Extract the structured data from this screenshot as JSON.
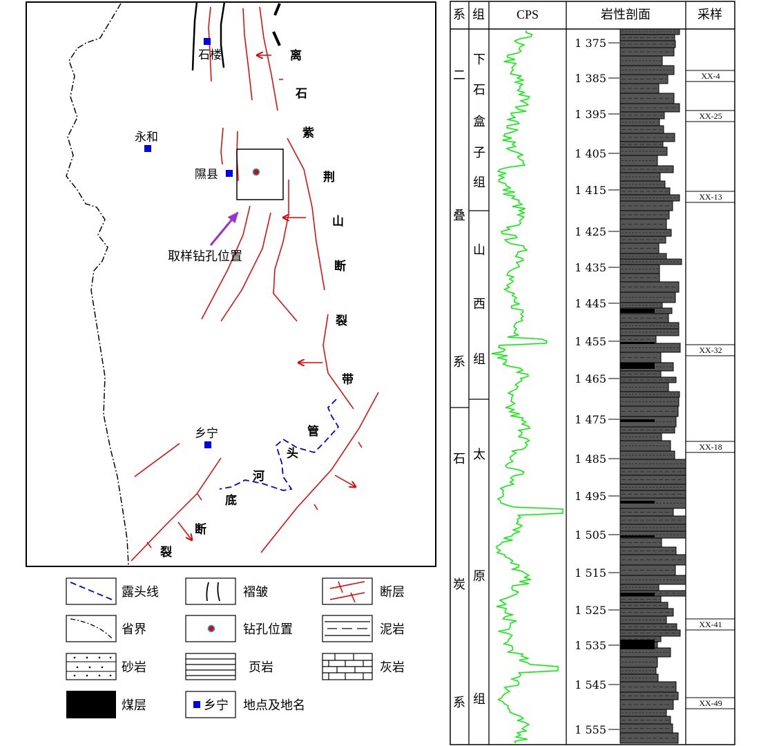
{
  "map": {
    "towns": [
      {
        "label": "石楼"
      },
      {
        "label": "永和"
      },
      {
        "label": "隰县"
      },
      {
        "label": "乡宁"
      }
    ],
    "arrow_label": "取样钻孔位置",
    "fault_zone_chars": [
      "离",
      "石",
      "紫",
      "荆",
      "山",
      "断",
      "裂",
      "带"
    ],
    "river_chars": [
      "管",
      "头",
      "河",
      "底",
      "断",
      "裂"
    ]
  },
  "legend": [
    {
      "id": "outcrop",
      "label": "露头线"
    },
    {
      "id": "fold",
      "label": "褶皱"
    },
    {
      "id": "fault",
      "label": "断层"
    },
    {
      "id": "province",
      "label": "省界"
    },
    {
      "id": "drill",
      "label": "钻孔位置"
    },
    {
      "id": "mudstone",
      "label": "泥岩"
    },
    {
      "id": "sandstone",
      "label": "砂岩"
    },
    {
      "id": "shale",
      "label": "页岩"
    },
    {
      "id": "limestone",
      "label": "灰岩"
    },
    {
      "id": "coal",
      "label": "煤层"
    },
    {
      "id": "place",
      "label": "乡宁",
      "extra": "地点及地名"
    }
  ],
  "column": {
    "headers": {
      "system": "系",
      "formation": "组",
      "cps": "CPS",
      "lithology": "岩性剖面",
      "sample": "采样"
    },
    "systems": [
      {
        "chars": [
          "二",
          "叠",
          "系"
        ]
      },
      {
        "chars": [
          "石",
          "炭",
          "系"
        ]
      }
    ],
    "formations": [
      {
        "chars": [
          "下",
          "石",
          "盒",
          "子",
          "组"
        ]
      },
      {
        "chars": [
          "山",
          "西",
          "组"
        ]
      },
      {
        "chars": [
          "太",
          "原",
          "组"
        ]
      }
    ],
    "depths": [
      "1 375",
      "1 385",
      "1 395",
      "1 405",
      "1 415",
      "1 425",
      "1 435",
      "1 445",
      "1 455",
      "1 465",
      "1 475",
      "1 485",
      "1 495",
      "1 505",
      "1 515",
      "1 525",
      "1 535",
      "1 545",
      "1 555"
    ],
    "samples": [
      "XX-4",
      "XX-25",
      "XX-13",
      "XX-32",
      "XX-18",
      "XX-41",
      "XX-49"
    ]
  },
  "colors": {
    "fault": "#e60000",
    "outcrop": "#0000dd",
    "town": "#0000ee",
    "arrow": "#9b30d0",
    "cps": "#00ee00",
    "rock": "#555555"
  }
}
